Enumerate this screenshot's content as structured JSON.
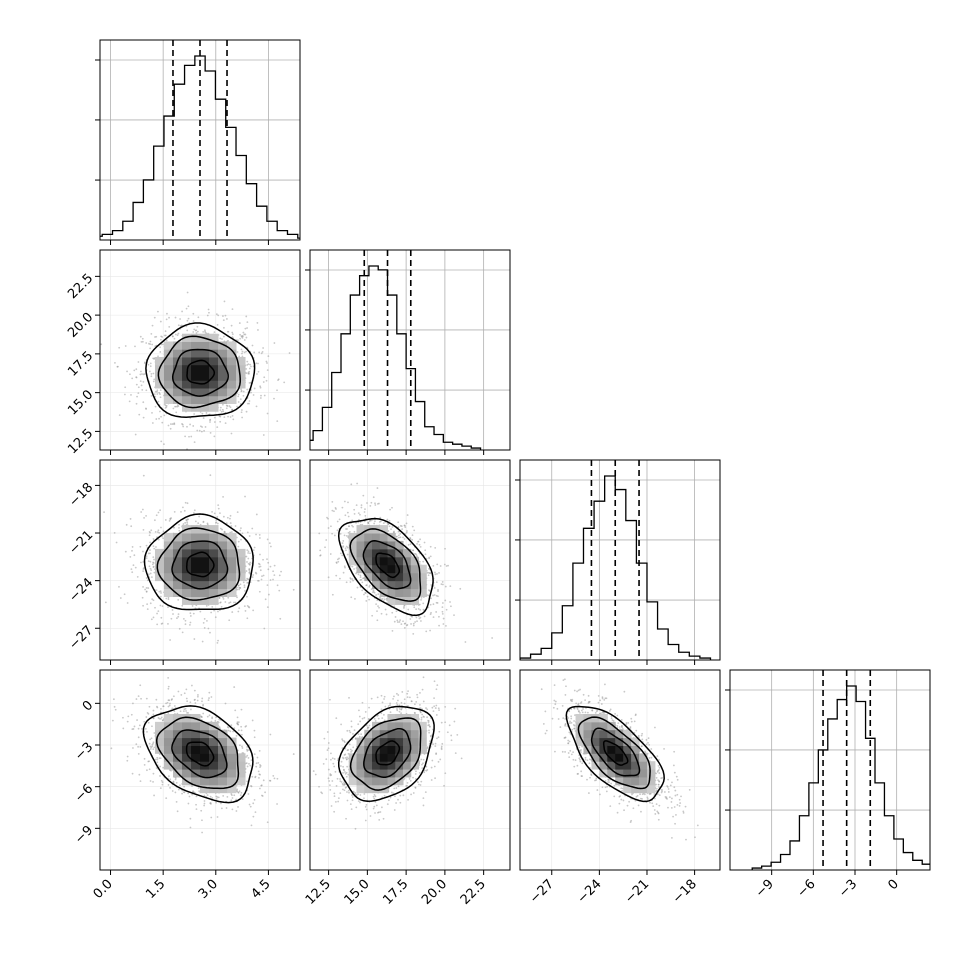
{
  "chart_data": {
    "type": "corner",
    "variables": [
      {
        "range": [
          -0.3,
          5.4
        ],
        "ticks": [
          0.0,
          1.5,
          3.0,
          4.5
        ],
        "tick_labels": [
          "0.0",
          "1.5",
          "3.0",
          "4.5"
        ],
        "quantiles": [
          1.78,
          2.55,
          3.32
        ],
        "center": 2.55,
        "sigma": 0.77,
        "hist_bins": [
          0.02,
          0.03,
          0.05,
          0.1,
          0.2,
          0.32,
          0.5,
          0.66,
          0.83,
          0.93,
          0.98,
          0.9,
          0.75,
          0.6,
          0.45,
          0.3,
          0.18,
          0.1,
          0.05,
          0.03,
          0.01
        ]
      },
      {
        "range": [
          11.3,
          24.2
        ],
        "ticks": [
          12.5,
          15.0,
          17.5,
          20.0,
          22.5
        ],
        "tick_labels": [
          "12.5",
          "15.0",
          "17.5",
          "20.0",
          "22.5"
        ],
        "quantiles": [
          14.8,
          16.3,
          17.8
        ],
        "center": 16.3,
        "sigma": 1.5,
        "hist_bins": [
          0.02,
          0.05,
          0.1,
          0.22,
          0.4,
          0.6,
          0.8,
          0.9,
          0.95,
          0.93,
          0.8,
          0.6,
          0.42,
          0.25,
          0.12,
          0.08,
          0.04,
          0.03,
          0.02,
          0.01
        ]
      },
      {
        "range": [
          -29.0,
          -16.4
        ],
        "ticks": [
          -27,
          -24,
          -21,
          -18
        ],
        "tick_labels": [
          "−27",
          "−24",
          "−21",
          "−18"
        ],
        "quantiles": [
          -24.5,
          -23.0,
          -21.5
        ],
        "center": -23.0,
        "sigma": 1.5,
        "hist_bins": [
          0.01,
          0.03,
          0.06,
          0.14,
          0.28,
          0.5,
          0.68,
          0.82,
          0.95,
          0.88,
          0.72,
          0.5,
          0.3,
          0.16,
          0.08,
          0.04,
          0.02,
          0.01
        ]
      },
      {
        "range": [
          -12.0,
          2.4
        ],
        "ticks": [
          -9,
          -6,
          -3,
          0
        ],
        "tick_labels": [
          "−9",
          "−6",
          "−3",
          "0"
        ],
        "quantiles": [
          -5.3,
          -3.6,
          -1.9
        ],
        "center": -3.6,
        "sigma": 1.7,
        "hist_bins": [
          0.01,
          0.02,
          0.04,
          0.08,
          0.15,
          0.28,
          0.45,
          0.62,
          0.78,
          0.88,
          0.95,
          0.87,
          0.68,
          0.45,
          0.28,
          0.16,
          0.09,
          0.05,
          0.03,
          0.01
        ]
      }
    ],
    "correlations": [
      [
        1.0,
        0.0,
        0.0,
        -0.35
      ],
      [
        0.0,
        1.0,
        -0.5,
        0.35
      ],
      [
        0.0,
        -0.5,
        1.0,
        -0.65
      ],
      [
        -0.35,
        0.35,
        -0.65,
        1.0
      ]
    ],
    "contour_levels_sigma": [
      0.5,
      1.0,
      1.5,
      2.0
    ],
    "grid": true,
    "quantile_style": "dashed"
  }
}
